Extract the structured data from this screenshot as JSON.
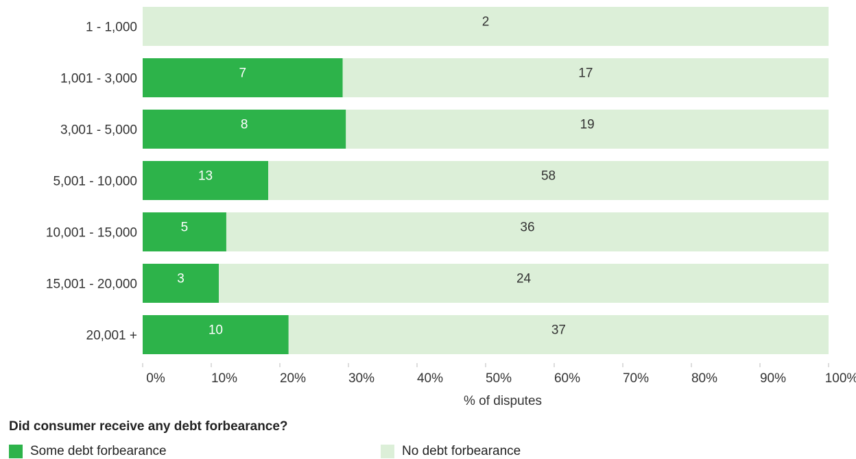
{
  "chart_data": {
    "type": "bar",
    "orientation": "horizontal",
    "stacked": "percent",
    "categories": [
      "1 - 1,000",
      "1,001 - 3,000",
      "3,001 - 5,000",
      "5,001 - 10,000",
      "10,001 - 15,000",
      "15,001 - 20,000",
      "20,001 +"
    ],
    "series": [
      {
        "name": "Some debt forbearance",
        "values": [
          0,
          7,
          8,
          13,
          5,
          3,
          10
        ],
        "color": "#2db34a"
      },
      {
        "name": "No debt forbearance",
        "values": [
          2,
          17,
          19,
          58,
          36,
          24,
          37
        ],
        "color": "#dcefd8"
      }
    ],
    "xlabel": "% of disputes",
    "ylabel": "",
    "xlim": [
      0,
      100
    ],
    "xticks": [
      "0%",
      "10%",
      "20%",
      "30%",
      "40%",
      "50%",
      "60%",
      "70%",
      "80%",
      "90%",
      "100%"
    ],
    "grid": false,
    "legend_title": "Did consumer receive any debt forbearance?",
    "legend_position": "bottom"
  }
}
